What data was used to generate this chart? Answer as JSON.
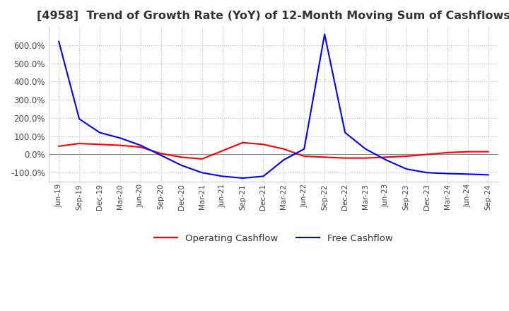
{
  "title": "[4958]  Trend of Growth Rate (YoY) of 12-Month Moving Sum of Cashflows",
  "title_fontsize": 11.5,
  "ylim": [
    -150,
    700
  ],
  "yticks": [
    -100,
    0,
    100,
    200,
    300,
    400,
    500,
    600
  ],
  "background_color": "#ffffff",
  "grid_color": "#bbbbbb",
  "operating_color": "#ff0000",
  "free_color": "#0000ff",
  "legend_labels": [
    "Operating Cashflow",
    "Free Cashflow"
  ],
  "x_labels": [
    "Jun-19",
    "Sep-19",
    "Dec-19",
    "Mar-20",
    "Jun-20",
    "Sep-20",
    "Dec-20",
    "Mar-21",
    "Jun-21",
    "Sep-21",
    "Dec-21",
    "Mar-22",
    "Jun-22",
    "Sep-22",
    "Dec-22",
    "Mar-23",
    "Jun-23",
    "Sep-23",
    "Dec-23",
    "Mar-24",
    "Jun-24",
    "Sep-24"
  ],
  "operating_cashflow": [
    45,
    60,
    55,
    50,
    40,
    5,
    -15,
    -25,
    20,
    65,
    55,
    30,
    -10,
    -15,
    -20,
    -20,
    -15,
    -10,
    0,
    10,
    15,
    15
  ],
  "free_cashflow": [
    620,
    195,
    120,
    90,
    50,
    -5,
    -60,
    -100,
    -120,
    -130,
    -120,
    -30,
    30,
    660,
    120,
    30,
    -30,
    -80,
    -100,
    -105,
    -108,
    -112
  ]
}
